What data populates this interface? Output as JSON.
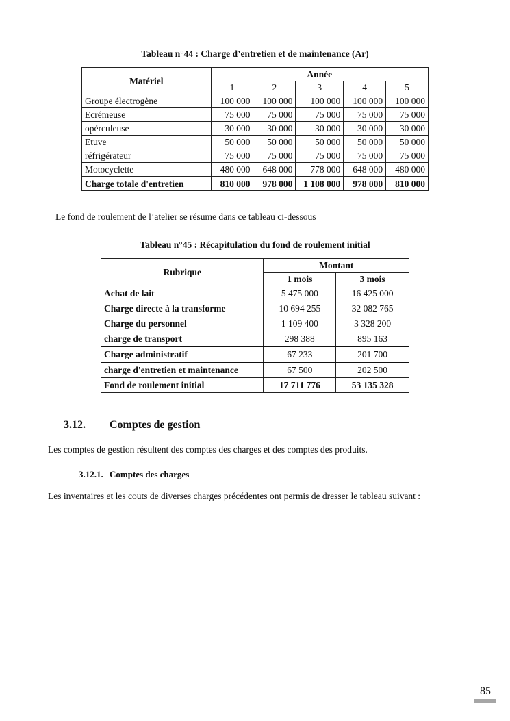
{
  "table44": {
    "caption": "Tableau n°44 : Charge d’entretien et de maintenance (Ar)",
    "col_header": "Matériel",
    "group_header": "Année",
    "years": [
      "1",
      "2",
      "3",
      "4",
      "5"
    ],
    "rows": [
      {
        "label": "Groupe électrogène",
        "values": [
          "100 000",
          "100 000",
          "100 000",
          "100 000",
          "100 000"
        ]
      },
      {
        "label": "Ecrémeuse",
        "values": [
          "75 000",
          "75 000",
          "75 000",
          "75 000",
          "75 000"
        ]
      },
      {
        "label": "opérculeuse",
        "values": [
          "30 000",
          "30 000",
          "30 000",
          "30 000",
          "30 000"
        ]
      },
      {
        "label": "Etuve",
        "values": [
          "50 000",
          "50 000",
          "50 000",
          "50 000",
          "50 000"
        ]
      },
      {
        "label": "réfrigérateur",
        "values": [
          "75 000",
          "75 000",
          "75 000",
          "75 000",
          "75 000"
        ]
      },
      {
        "label": "Motocyclette",
        "values": [
          "480 000",
          "648 000",
          "778 000",
          "648 000",
          "480 000"
        ]
      }
    ],
    "total": {
      "label": "Charge totale d'entretien",
      "values": [
        "810 000",
        "978 000",
        "1 108 000",
        "978 000",
        "810 000"
      ]
    }
  },
  "intro_text": "Le fond de roulement de l’atelier se résume dans ce tableau ci-dessous",
  "table45": {
    "caption": "Tableau n°45 : Récapitulation du fond de roulement initial",
    "col_header": "Rubrique",
    "group_header": "Montant",
    "periods": [
      "1 mois",
      "3 mois"
    ],
    "rows": [
      {
        "label": "Achat de lait",
        "values": [
          "5 475 000",
          "16 425 000"
        ]
      },
      {
        "label": "Charge directe à la transforme",
        "values": [
          "10 694 255",
          "32 082 765"
        ]
      },
      {
        "label": "Charge du personnel",
        "values": [
          "1 109 400",
          "3 328 200"
        ]
      },
      {
        "label": "charge de transport",
        "values": [
          "298 388",
          "895 163"
        ]
      },
      {
        "label": "Charge administratif",
        "values": [
          "67 233",
          "201 700"
        ]
      },
      {
        "label": "charge d'entretien et maintenance",
        "values": [
          "67 500",
          "202 500"
        ]
      }
    ],
    "total": {
      "label": "Fond de roulement initial",
      "values": [
        "17 711 776",
        "53 135 328"
      ]
    }
  },
  "section": {
    "number": "3.12.",
    "title": "Comptes de gestion",
    "text": "Les comptes de gestion résultent des comptes des charges et des comptes des produits."
  },
  "subsection": {
    "number": "3.12.1.",
    "title": "Comptes des charges",
    "text": "Les inventaires et les couts de diverses charges précédentes ont permis de dresser le tableau suivant :"
  },
  "page_number": "85"
}
